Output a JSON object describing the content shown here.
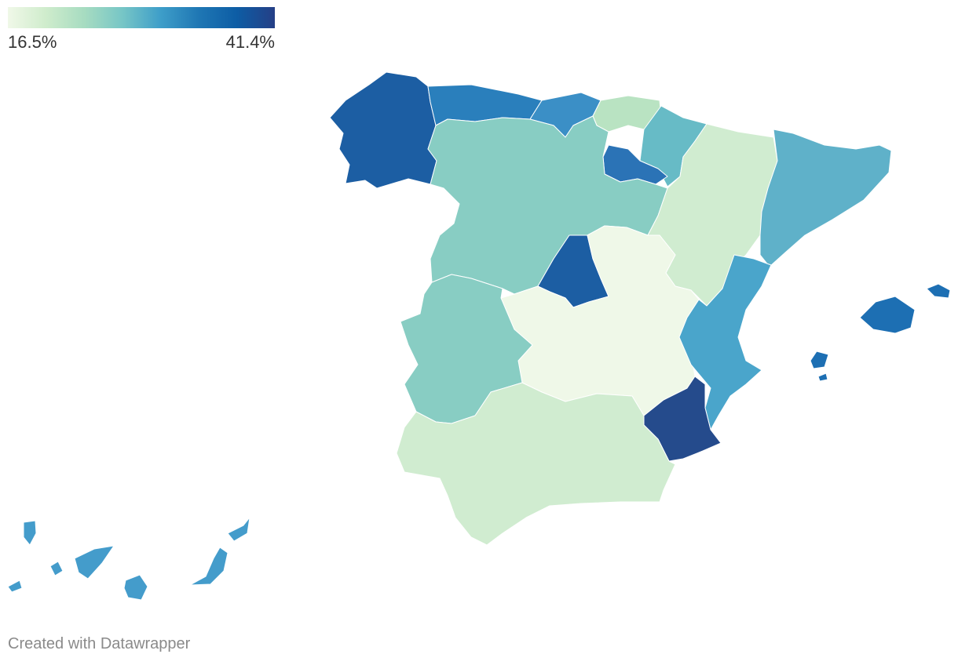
{
  "legend": {
    "min_label": "16.5%",
    "max_label": "41.4%",
    "gradient": [
      "#f0f8e8",
      "#cfeccc",
      "#a7dcc1",
      "#77c6c6",
      "#3e9ec9",
      "#1f77b4",
      "#0d5da5",
      "#253f86"
    ]
  },
  "footer": {
    "credit": "Created with Datawrapper"
  },
  "regions": [
    {
      "name": "Galicia",
      "color": "#1c5ea3"
    },
    {
      "name": "Asturias",
      "color": "#2a7fbc"
    },
    {
      "name": "Cantabria",
      "color": "#3b8fc6"
    },
    {
      "name": "País Vasco",
      "color": "#b9e3c2"
    },
    {
      "name": "Navarra",
      "color": "#67bbc6"
    },
    {
      "name": "La Rioja",
      "color": "#2b73b6"
    },
    {
      "name": "Castilla y León",
      "color": "#88cdc3"
    },
    {
      "name": "Aragón",
      "color": "#d0ecd0"
    },
    {
      "name": "Cataluña",
      "color": "#5fb1c9"
    },
    {
      "name": "Madrid",
      "color": "#1c5ea3"
    },
    {
      "name": "Extremadura",
      "color": "#eff8e8"
    },
    {
      "name": "Castilla-La Mancha",
      "color": "#4aa5cb"
    },
    {
      "name": "Comunitat Valenciana",
      "color": "#254b8c"
    },
    {
      "name": "Murcia",
      "color": "#88cdc3"
    },
    {
      "name": "Andalucía",
      "color": "#d0ecd0"
    },
    {
      "name": "Illes Balears",
      "color": "#1d6fb3"
    },
    {
      "name": "Canarias",
      "color": "#449ccb"
    }
  ]
}
